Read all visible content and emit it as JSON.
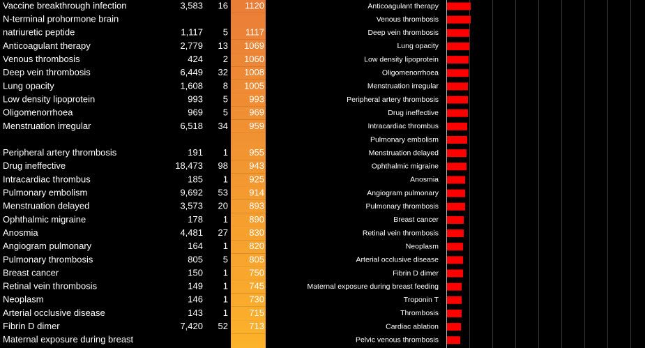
{
  "table": {
    "rows": [
      {
        "name_lines": [
          "Vaccine breakthrough infection"
        ],
        "count": "3,583",
        "n": 16,
        "score": 1120
      },
      {
        "name_lines": [
          "N-terminal prohormone brain",
          "natriuretic peptide"
        ],
        "count": "1,117",
        "n": 5,
        "score": 1117
      },
      {
        "name_lines": [
          "Anticoagulant therapy"
        ],
        "count": "2,779",
        "n": 13,
        "score": 1069
      },
      {
        "name_lines": [
          "Venous thrombosis"
        ],
        "count": "424",
        "n": 2,
        "score": 1060
      },
      {
        "name_lines": [
          "Deep vein thrombosis"
        ],
        "count": "6,449",
        "n": 32,
        "score": 1008
      },
      {
        "name_lines": [
          "Lung opacity"
        ],
        "count": "1,608",
        "n": 8,
        "score": 1005
      },
      {
        "name_lines": [
          "Low density lipoprotein"
        ],
        "count": "993",
        "n": 5,
        "score": 993
      },
      {
        "name_lines": [
          "Oligomenorrhoea"
        ],
        "count": "969",
        "n": 5,
        "score": 969
      },
      {
        "name_lines": [
          "Menstruation irregular"
        ],
        "count": "6,518",
        "n": 34,
        "score": 959
      },
      {
        "name_lines": [
          "Peripheral artery thrombosis"
        ],
        "count": "191",
        "n": 1,
        "score": 955
      },
      {
        "name_lines": [
          "Drug ineffective"
        ],
        "count": "18,473",
        "n": 98,
        "score": 943
      },
      {
        "name_lines": [
          "Intracardiac thrombus"
        ],
        "count": "185",
        "n": 1,
        "score": 925
      },
      {
        "name_lines": [
          "Pulmonary embolism"
        ],
        "count": "9,692",
        "n": 53,
        "score": 914
      },
      {
        "name_lines": [
          "Menstruation delayed"
        ],
        "count": "3,573",
        "n": 20,
        "score": 893
      },
      {
        "name_lines": [
          "Ophthalmic migraine"
        ],
        "count": "178",
        "n": 1,
        "score": 890
      },
      {
        "name_lines": [
          "Anosmia"
        ],
        "count": "4,481",
        "n": 27,
        "score": 830
      },
      {
        "name_lines": [
          "Angiogram pulmonary"
        ],
        "count": "164",
        "n": 1,
        "score": 820
      },
      {
        "name_lines": [
          "Pulmonary thrombosis"
        ],
        "count": "805",
        "n": 5,
        "score": 805
      },
      {
        "name_lines": [
          "Breast cancer"
        ],
        "count": "150",
        "n": 1,
        "score": 750
      },
      {
        "name_lines": [
          "Retinal vein thrombosis"
        ],
        "count": "149",
        "n": 1,
        "score": 745
      },
      {
        "name_lines": [
          "Neoplasm"
        ],
        "count": "146",
        "n": 1,
        "score": 730
      },
      {
        "name_lines": [
          "Arterial occlusive disease"
        ],
        "count": "143",
        "n": 1,
        "score": 715
      },
      {
        "name_lines": [
          "Fibrin D dimer"
        ],
        "count": "7,420",
        "n": 52,
        "score": 713
      },
      {
        "name_lines": [
          "Maternal exposure during breast"
        ]
      }
    ],
    "cell_colors": [
      "#ea7d37",
      "#fcb22a"
    ]
  },
  "chart_data": {
    "type": "bar",
    "orientation": "horizontal",
    "color": "#ff0000",
    "categories": [
      "Anticoagulant therapy",
      "Venous thrombosis",
      "Deep vein thrombosis",
      "Lung opacity",
      "Low density lipoprotein",
      "Oligomenorrhoea",
      "Menstruation irregular",
      "Peripheral artery thrombosis",
      "Drug ineffective",
      "Intracardiac thrombus",
      "Pulmonary embolism",
      "Menstruation delayed",
      "Ophthalmic migraine",
      "Anosmia",
      "Angiogram pulmonary",
      "Pulmonary thrombosis",
      "Breast cancer",
      "Retinal vein thrombosis",
      "Neoplasm",
      "Arterial occlusive disease",
      "Fibrin D dimer",
      "Maternal exposure during breast feeding",
      "Troponin T",
      "Thrombosis",
      "Cardiac ablation",
      "Pelvic venous thrombosis"
    ],
    "values": [
      1.03,
      1.03,
      0.97,
      0.97,
      0.94,
      0.94,
      0.91,
      0.91,
      0.91,
      0.88,
      0.88,
      0.85,
      0.85,
      0.79,
      0.79,
      0.79,
      0.73,
      0.73,
      0.7,
      0.7,
      0.7,
      0.64,
      0.64,
      0.64,
      0.61,
      0.58
    ],
    "xlim": [
      0,
      8.5
    ],
    "xticks": [
      0,
      1,
      2,
      3,
      4,
      5,
      6,
      7,
      8
    ],
    "grid": true
  }
}
